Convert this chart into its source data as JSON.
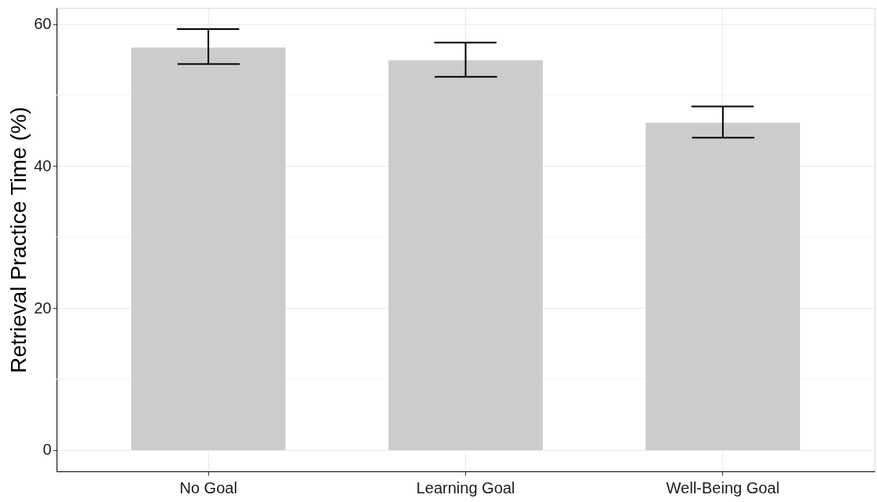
{
  "chart_data": {
    "type": "bar",
    "ylabel": "Retrieval Practice Time (%)",
    "categories": [
      "No Goal",
      "Learning Goal",
      "Well-Being Goal"
    ],
    "values": [
      56.7,
      54.9,
      46.1
    ],
    "errors": [
      [
        54.4,
        59.3
      ],
      [
        52.6,
        57.4
      ],
      [
        44.0,
        48.4
      ]
    ],
    "color": "#cccccc",
    "ylim": [
      -3,
      62.3
    ],
    "yticks": [
      0,
      {
        "value": 10,
        "label": null
      },
      20,
      {
        "value": 30,
        "label": null
      },
      40,
      {
        "value": 50,
        "label": null
      },
      60
    ],
    "grid": true
  }
}
